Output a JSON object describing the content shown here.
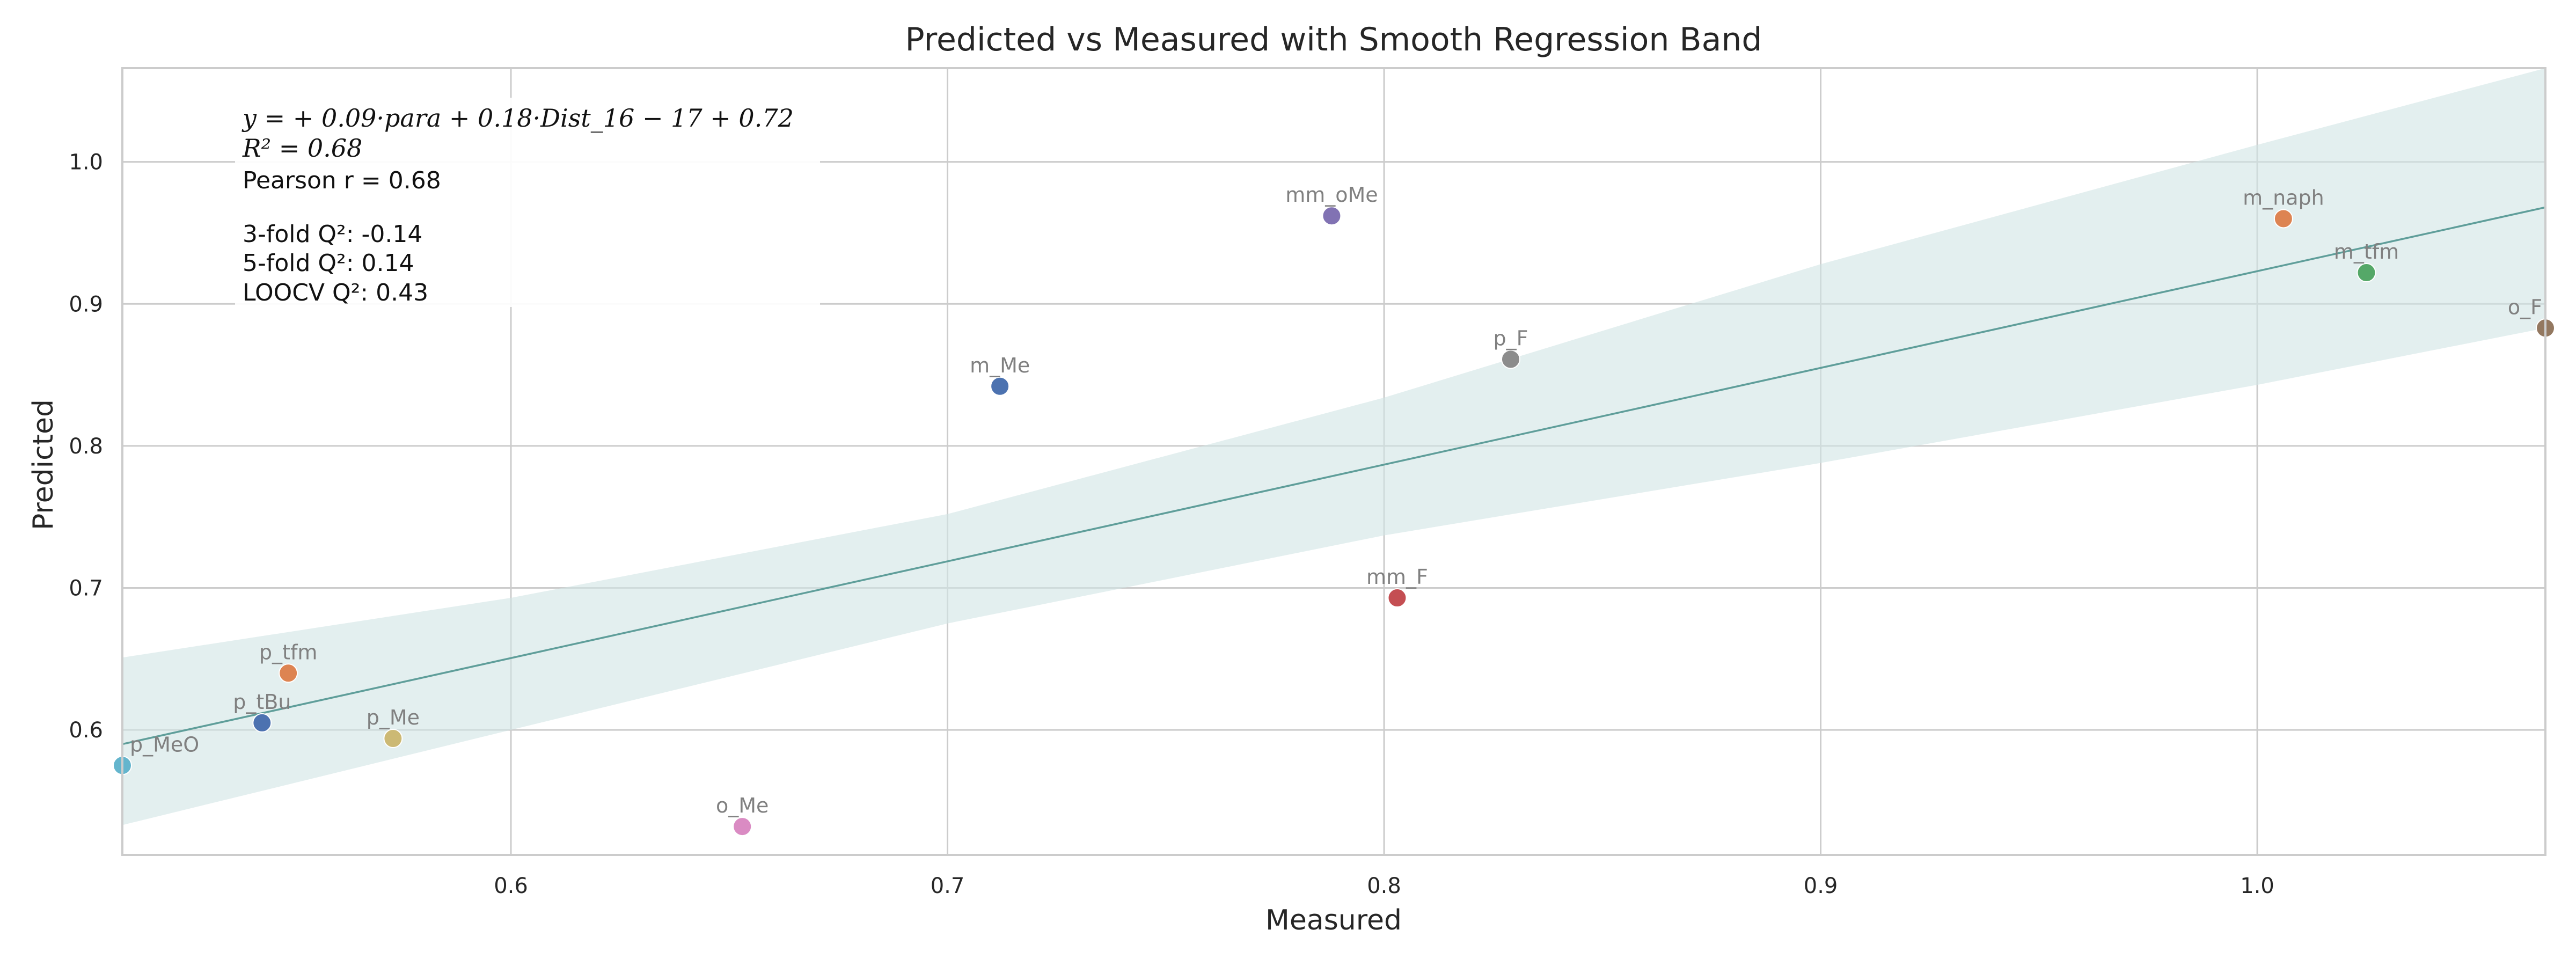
{
  "chart_data": {
    "type": "scatter",
    "title": "Predicted vs Measured with Smooth Regression Band",
    "xlabel": "Measured",
    "ylabel": "Predicted",
    "xlim": [
      0.511,
      1.066
    ],
    "ylim": [
      0.512,
      1.066
    ],
    "xticks": [
      0.6,
      0.7,
      0.8,
      0.9,
      1.0
    ],
    "yticks": [
      0.6,
      0.7,
      0.8,
      0.9,
      1.0
    ],
    "grid": true,
    "points": [
      {
        "label": "p_MeO",
        "x": 0.511,
        "y": 0.575,
        "color": "#64b5cd"
      },
      {
        "label": "p_tBu",
        "x": 0.543,
        "y": 0.605,
        "color": "#4c72b0"
      },
      {
        "label": "p_tfm",
        "x": 0.549,
        "y": 0.64,
        "color": "#dd8452"
      },
      {
        "label": "p_Me",
        "x": 0.573,
        "y": 0.594,
        "color": "#ccb974"
      },
      {
        "label": "o_Me",
        "x": 0.653,
        "y": 0.532,
        "color": "#da8bc3"
      },
      {
        "label": "m_Me",
        "x": 0.712,
        "y": 0.842,
        "color": "#4c72b0"
      },
      {
        "label": "mm_oMe",
        "x": 0.788,
        "y": 0.962,
        "color": "#8172b3"
      },
      {
        "label": "mm_F",
        "x": 0.803,
        "y": 0.693,
        "color": "#c44e52"
      },
      {
        "label": "p_F",
        "x": 0.829,
        "y": 0.861,
        "color": "#8c8c8c"
      },
      {
        "label": "m_naph",
        "x": 1.006,
        "y": 0.96,
        "color": "#dd8452"
      },
      {
        "label": "m_tfm",
        "x": 1.025,
        "y": 0.922,
        "color": "#55a868"
      },
      {
        "label": "o_F",
        "x": 1.066,
        "y": 0.883,
        "color": "#937860"
      }
    ],
    "regression_line": {
      "x": [
        0.511,
        1.066
      ],
      "y": [
        0.59,
        0.968
      ],
      "color": "#5f9e9a"
    },
    "band": {
      "x": [
        0.511,
        0.6,
        0.7,
        0.8,
        0.9,
        1.0,
        1.066
      ],
      "lower": [
        0.533,
        0.6,
        0.675,
        0.737,
        0.788,
        0.843,
        0.883
      ],
      "upper": [
        0.651,
        0.693,
        0.752,
        0.834,
        0.928,
        1.012,
        1.066
      ],
      "color": "#d0e5e4"
    },
    "annotations": {
      "equation": "y = + 0.09·para + 0.18·Dist_16 − 17 + 0.72",
      "r2": "R² = 0.68",
      "pearson": "Pearson r = 0.68",
      "q2_3fold": "3-fold Q²: -0.14",
      "q2_5fold": "5-fold Q²: 0.14",
      "q2_loocv": "LOOCV Q²: 0.43"
    }
  }
}
